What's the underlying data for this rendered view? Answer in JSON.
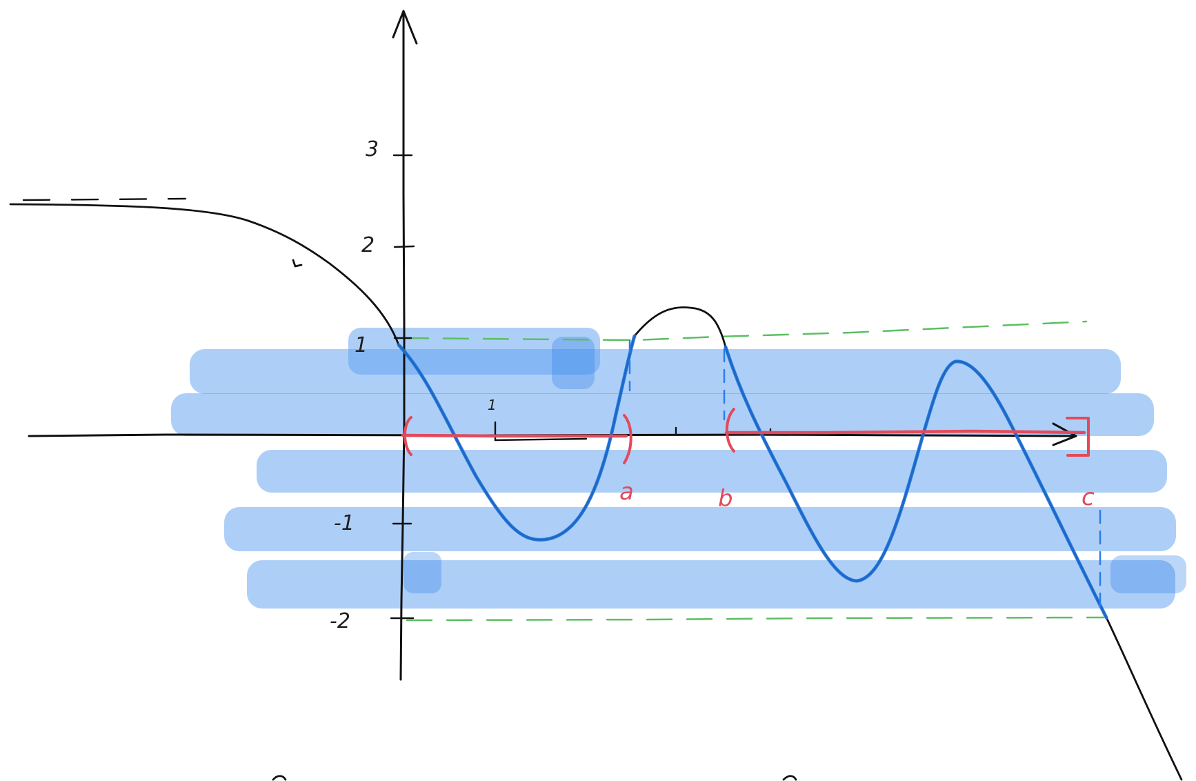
{
  "labels": {
    "y_ticks": [
      "3",
      "2",
      "1",
      "-1",
      "-2"
    ],
    "x_tick": "1",
    "interval_a": "a",
    "interval_b": "b",
    "interval_c": "c"
  },
  "colors": {
    "curve": "#111111",
    "highlight": "#1e72dc",
    "band": "#5b9ff0",
    "bound_guides": "#5cbf62",
    "intervals": "#e24a5c"
  }
}
